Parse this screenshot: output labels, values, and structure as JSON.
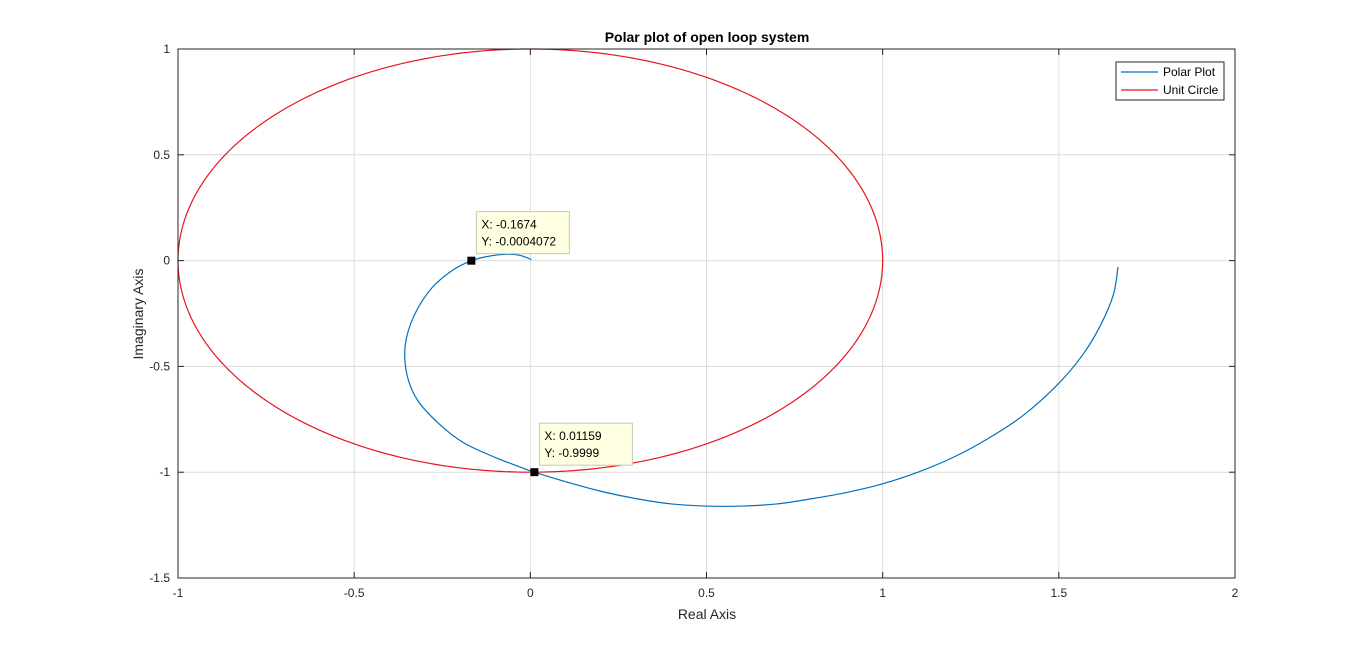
{
  "chart_data": {
    "type": "line",
    "title": "Polar plot of open loop system",
    "xlabel": "Real Axis",
    "ylabel": "Imaginary Axis",
    "xlim": [
      -1,
      2
    ],
    "ylim": [
      -1.5,
      1
    ],
    "xticks": [
      -1,
      -0.5,
      0,
      0.5,
      1,
      1.5,
      2
    ],
    "yticks": [
      -1.5,
      -1,
      -0.5,
      0,
      0.5,
      1
    ],
    "xtick_labels": [
      "-1",
      "-0.5",
      "0",
      "0.5",
      "1",
      "1.5",
      "2"
    ],
    "ytick_labels": [
      "-1.5",
      "-1",
      "-0.5",
      "0",
      "0.5",
      "1"
    ],
    "grid": true,
    "legend": {
      "placement": "top-right",
      "entries": [
        "Polar Plot",
        "Unit Circle"
      ]
    },
    "colors": {
      "polar": "#0072BD",
      "circle": "#E8141C",
      "axes": "#262626",
      "grid": "#DCDCDC"
    },
    "series": [
      {
        "name": "Polar Plot",
        "x": [
          0.003,
          -0.03,
          -0.07,
          -0.12,
          -0.1674,
          -0.22,
          -0.28,
          -0.33,
          -0.355,
          -0.35,
          -0.32,
          -0.26,
          -0.19,
          -0.1,
          -0.03,
          0.01159,
          0.1,
          0.2,
          0.3,
          0.4,
          0.5,
          0.6,
          0.7,
          0.8,
          0.9,
          1.0,
          1.1,
          1.2,
          1.3,
          1.4,
          1.5,
          1.57,
          1.62,
          1.655,
          1.668
        ],
        "y": [
          0.005,
          0.025,
          0.03,
          0.02,
          -0.0004,
          -0.045,
          -0.13,
          -0.26,
          -0.4,
          -0.54,
          -0.66,
          -0.77,
          -0.86,
          -0.93,
          -0.975,
          -0.9999,
          -1.045,
          -1.09,
          -1.125,
          -1.15,
          -1.16,
          -1.16,
          -1.15,
          -1.125,
          -1.095,
          -1.055,
          -1.0,
          -0.93,
          -0.84,
          -0.73,
          -0.58,
          -0.44,
          -0.3,
          -0.16,
          -0.03
        ]
      },
      {
        "name": "Unit Circle",
        "shape": "unit-circle",
        "center": [
          0,
          0
        ],
        "radius": 1
      }
    ],
    "datatips": [
      {
        "x": -0.1674,
        "y": -0.0004072,
        "label_x": "X: -0.1674",
        "label_y": "Y: -0.0004072"
      },
      {
        "x": 0.01159,
        "y": -0.9999,
        "label_x": "X: 0.01159",
        "label_y": "Y: -0.9999"
      }
    ]
  }
}
